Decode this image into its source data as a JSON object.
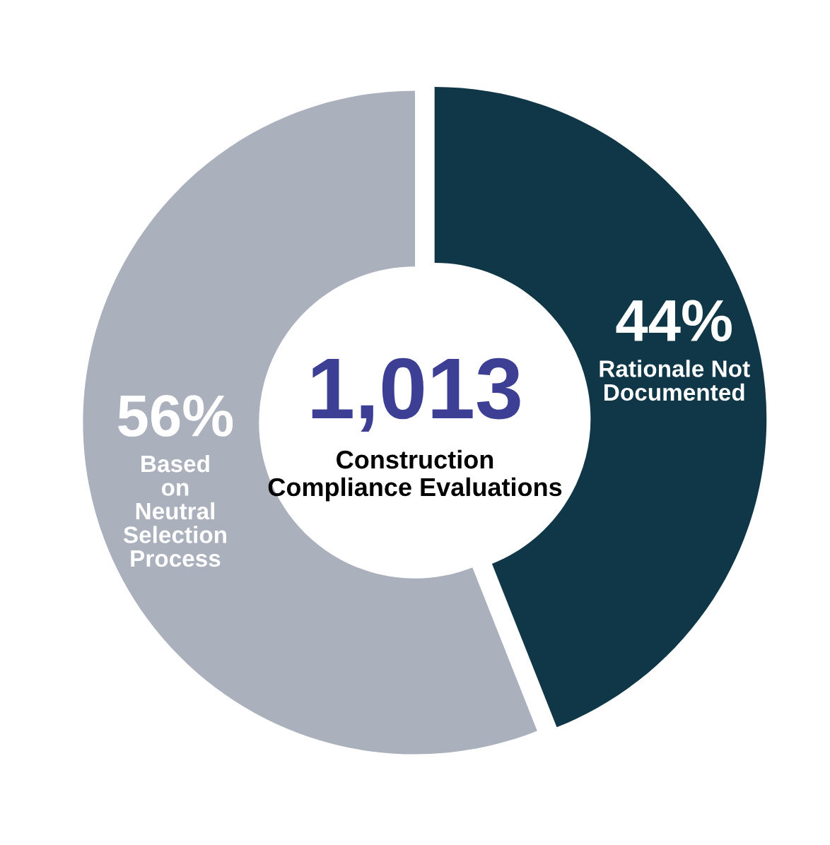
{
  "chart_data": {
    "type": "donut",
    "categories": [
      "Based on Neutral Selection Process",
      "Rationale Not Documented"
    ],
    "values": [
      56,
      44
    ],
    "colors": [
      "#aab1bd",
      "#0f3747"
    ],
    "value_labels": [
      "56%",
      "44%"
    ],
    "annotations": [
      "1,013",
      "Construction Compliance Evaluations"
    ]
  }
}
